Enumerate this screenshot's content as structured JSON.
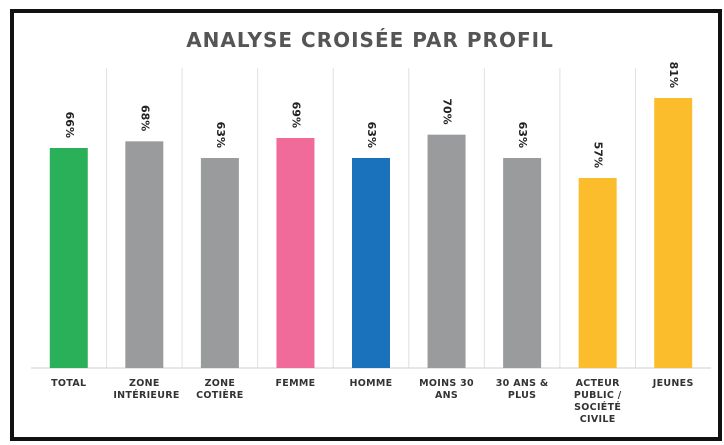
{
  "chart_data": {
    "type": "bar",
    "title": "ANALYSE CROISÉE PAR PROFIL",
    "categories": [
      "TOTAL",
      "ZONE INTÉRIEURE",
      "ZONE COTIÈRE",
      "FEMME",
      "HOMME",
      "MOINS 30 ANS",
      "30 ANS & PLUS",
      "ACTEUR PUBLIC / SOCIÉTÉ CIVILE",
      "JEUNES"
    ],
    "values": [
      66,
      68,
      63,
      69,
      63,
      70,
      63,
      57,
      81
    ],
    "value_labels": [
      "66%",
      "68%",
      "63%",
      "69%",
      "63%",
      "70%",
      "63%",
      "57%",
      "81%"
    ],
    "colors": [
      "#2bb05a",
      "#9a9b9d",
      "#9a9b9d",
      "#f06b9a",
      "#1a72bd",
      "#9a9b9d",
      "#9a9b9d",
      "#fbbd2b",
      "#fbbd2b"
    ],
    "ylim": [
      0,
      90
    ]
  }
}
